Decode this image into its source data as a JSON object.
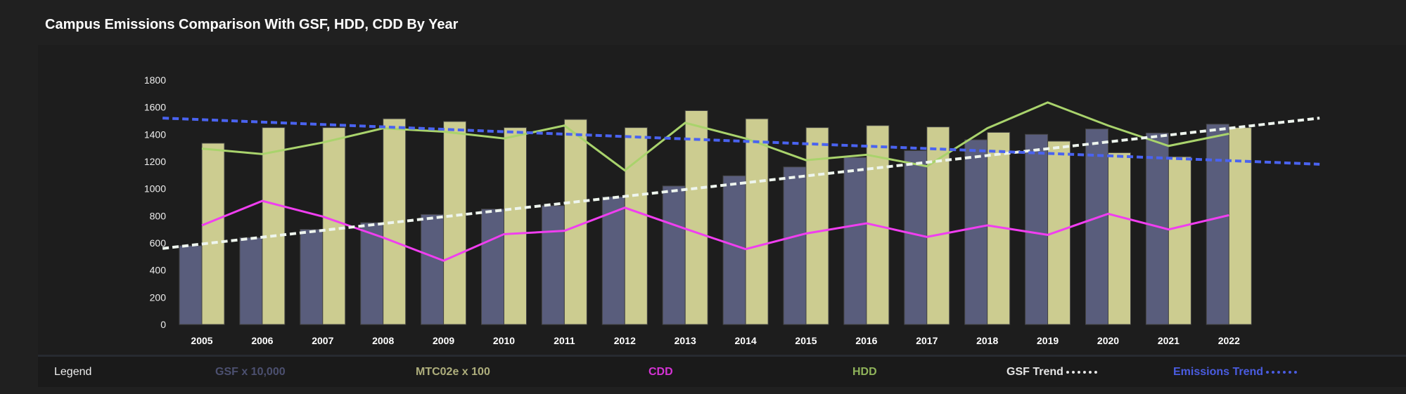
{
  "title": "Campus Emissions Comparison With GSF, HDD, CDD By Year",
  "legend": {
    "label": "Legend",
    "items": [
      {
        "name": "GSF x 10,000",
        "color": "#4c5070"
      },
      {
        "name": "MTC02e x 100",
        "color": "#aeae7c"
      },
      {
        "name": "CDD",
        "color": "#d533d5"
      },
      {
        "name": "HDD",
        "color": "#8fb35a"
      },
      {
        "name": "GSF Trend",
        "color": "#e6e6e6"
      },
      {
        "name": "Emissions Trend",
        "color": "#4a5ce0"
      }
    ]
  },
  "chart_data": {
    "type": "bar",
    "title": "Campus Emissions Comparison With GSF, HDD, CDD By Year",
    "categories": [
      "2005",
      "2006",
      "2007",
      "2008",
      "2009",
      "2010",
      "2011",
      "2012",
      "2013",
      "2014",
      "2015",
      "2016",
      "2017",
      "2018",
      "2019",
      "2020",
      "2021",
      "2022"
    ],
    "ylim": [
      0,
      1800
    ],
    "yticks": [
      0,
      200,
      400,
      600,
      800,
      1000,
      1200,
      1400,
      1600,
      1800
    ],
    "grid": false,
    "legend_position": "bottom",
    "series": [
      {
        "name": "GSF x 10,000",
        "type": "bar",
        "color": "#595d7c",
        "values": [
          580,
          640,
          700,
          750,
          810,
          850,
          875,
          940,
          1020,
          1095,
          1160,
          1230,
          1280,
          1360,
          1400,
          1440,
          1410,
          1475
        ]
      },
      {
        "name": "MTC02e x 100",
        "type": "bar",
        "color": "#cccc90",
        "values": [
          1335,
          1450,
          1450,
          1515,
          1495,
          1450,
          1510,
          1450,
          1575,
          1515,
          1450,
          1465,
          1455,
          1415,
          1350,
          1265,
          1235,
          1450
        ]
      },
      {
        "name": "CDD",
        "type": "line",
        "color": "#f03ef0",
        "values": [
          730,
          910,
          795,
          640,
          470,
          665,
          690,
          860,
          705,
          555,
          670,
          745,
          645,
          730,
          660,
          815,
          700,
          805
        ]
      },
      {
        "name": "HDD",
        "type": "line",
        "color": "#a9d36c",
        "values": [
          1295,
          1255,
          1340,
          1445,
          1420,
          1370,
          1465,
          1135,
          1485,
          1370,
          1210,
          1250,
          1165,
          1445,
          1635,
          1465,
          1315,
          1405
        ]
      },
      {
        "name": "GSF Trend",
        "type": "trend",
        "color": "#eef5ee",
        "start": 560,
        "end": 1520
      },
      {
        "name": "Emissions Trend",
        "type": "trend",
        "color": "#4a63f0",
        "start": 1520,
        "end": 1180
      }
    ]
  }
}
